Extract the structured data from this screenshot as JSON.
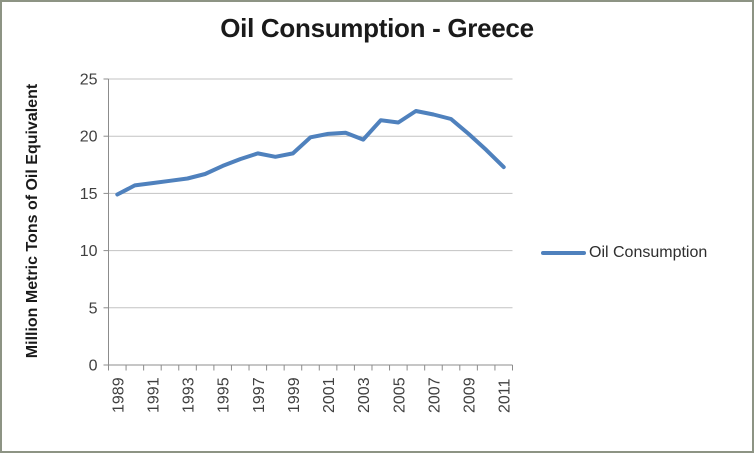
{
  "frame": {
    "border_color": "#8D9484",
    "background": "#FFFFFF"
  },
  "title": "Oil Consumption - Greece",
  "legend": {
    "label": "Oil Consumption",
    "swatch_color": "#4F81BD"
  },
  "y_axis": {
    "title": "Million Metric Tons of Oil Equivalent",
    "ticks": [
      0,
      5,
      10,
      15,
      20,
      25
    ],
    "range": [
      0,
      25
    ]
  },
  "x_axis": {
    "label_years": [
      "1989",
      "1991",
      "1993",
      "1995",
      "1997",
      "1999",
      "2001",
      "2003",
      "2005",
      "2007",
      "2009",
      "2011"
    ]
  },
  "colors": {
    "line": "#4F81BD",
    "gridline": "#C3C3C3",
    "axis": "#8C8C8C",
    "tick_label": "#404040"
  },
  "chart_data": {
    "type": "line",
    "title": "Oil Consumption - Greece",
    "xlabel": "",
    "ylabel": "Million Metric Tons of Oil Equivalent",
    "ylim": [
      0,
      25
    ],
    "grid": true,
    "legend_position": "right",
    "x": [
      1989,
      1990,
      1991,
      1992,
      1993,
      1994,
      1995,
      1996,
      1997,
      1998,
      1999,
      2000,
      2001,
      2002,
      2003,
      2004,
      2005,
      2006,
      2007,
      2008,
      2009,
      2010,
      2011
    ],
    "series": [
      {
        "name": "Oil Consumption",
        "color": "#4F81BD",
        "values": [
          14.9,
          15.7,
          15.9,
          16.1,
          16.3,
          16.7,
          17.4,
          18.0,
          18.5,
          18.2,
          18.5,
          19.9,
          20.2,
          20.3,
          19.7,
          21.4,
          21.2,
          22.2,
          21.9,
          21.5,
          20.2,
          18.8,
          17.3
        ]
      }
    ]
  }
}
